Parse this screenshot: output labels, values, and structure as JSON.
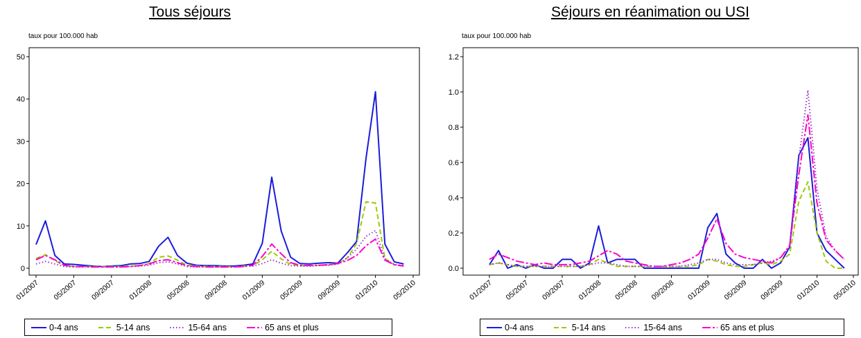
{
  "chart_data": [
    {
      "type": "line",
      "title": "Tous séjours",
      "ylabel": "taux pour 100.000 hab",
      "ylim": [
        0,
        50
      ],
      "yticks": [
        0,
        10,
        20,
        30,
        40,
        50
      ],
      "xticks": [
        "01/2007",
        "05/2007",
        "09/2007",
        "01/2008",
        "05/2008",
        "09/2008",
        "01/2009",
        "05/2009",
        "09/2009",
        "01/2010",
        "05/2010"
      ],
      "x": [
        "01/2007",
        "02/2007",
        "03/2007",
        "04/2007",
        "05/2007",
        "06/2007",
        "07/2007",
        "08/2007",
        "09/2007",
        "10/2007",
        "11/2007",
        "12/2007",
        "01/2008",
        "02/2008",
        "03/2008",
        "04/2008",
        "05/2008",
        "06/2008",
        "07/2008",
        "08/2008",
        "09/2008",
        "10/2008",
        "11/2008",
        "12/2008",
        "01/2009",
        "02/2009",
        "03/2009",
        "04/2009",
        "05/2009",
        "06/2009",
        "07/2009",
        "08/2009",
        "09/2009",
        "10/2009",
        "11/2009",
        "12/2009",
        "01/2010",
        "02/2010",
        "03/2010",
        "04/2010"
      ],
      "series": [
        {
          "name": "0-4 ans",
          "color": "#1a1adc",
          "dash": "",
          "values": [
            5.6,
            11.2,
            3.0,
            1.0,
            0.9,
            0.7,
            0.5,
            0.4,
            0.5,
            0.6,
            1.0,
            1.1,
            1.6,
            5.2,
            7.3,
            3.0,
            1.2,
            0.7,
            0.6,
            0.6,
            0.5,
            0.5,
            0.7,
            1.0,
            5.9,
            21.5,
            8.8,
            2.6,
            1.1,
            1.0,
            1.2,
            1.3,
            1.2,
            3.6,
            6.3,
            26.0,
            41.7,
            5.7,
            1.5,
            1.0
          ]
        },
        {
          "name": "5-14 ans",
          "color": "#99cc00",
          "dash": "7,4",
          "values": [
            2.3,
            3.2,
            1.8,
            0.6,
            0.4,
            0.4,
            0.4,
            0.4,
            0.4,
            0.4,
            0.5,
            0.6,
            1.1,
            2.6,
            2.9,
            1.9,
            0.7,
            0.5,
            0.4,
            0.4,
            0.4,
            0.3,
            0.5,
            0.6,
            2.0,
            4.0,
            2.2,
            0.9,
            0.6,
            0.6,
            0.7,
            0.8,
            1.0,
            2.4,
            5.8,
            15.7,
            15.4,
            2.3,
            0.8,
            0.5
          ]
        },
        {
          "name": "15-64 ans",
          "color": "#9933cc",
          "dash": "1.5,3",
          "values": [
            1.0,
            1.6,
            1.0,
            0.4,
            0.3,
            0.3,
            0.3,
            0.3,
            0.3,
            0.3,
            0.4,
            0.5,
            0.7,
            1.3,
            1.5,
            1.0,
            0.4,
            0.3,
            0.3,
            0.3,
            0.3,
            0.3,
            0.4,
            0.5,
            1.1,
            2.0,
            1.2,
            0.6,
            0.5,
            0.5,
            0.6,
            0.7,
            1.0,
            2.4,
            4.5,
            7.5,
            8.9,
            2.2,
            0.9,
            0.6
          ]
        },
        {
          "name": "65 ans et plus",
          "color": "#ff00cc",
          "dash": "12,3,3,3",
          "values": [
            2.0,
            3.0,
            2.0,
            0.7,
            0.4,
            0.4,
            0.3,
            0.3,
            0.3,
            0.3,
            0.4,
            0.6,
            1.0,
            1.8,
            2.0,
            1.3,
            0.6,
            0.4,
            0.3,
            0.3,
            0.3,
            0.3,
            0.4,
            0.7,
            2.8,
            5.7,
            3.4,
            1.3,
            0.7,
            0.6,
            0.7,
            0.8,
            1.1,
            1.8,
            3.0,
            5.3,
            6.9,
            1.9,
            0.8,
            0.5
          ]
        }
      ]
    },
    {
      "type": "line",
      "title": "Séjours en réanimation ou USI",
      "ylabel": "taux pour 100.000 hab",
      "ylim": [
        0,
        1.2
      ],
      "yticks": [
        "0.0",
        "0.2",
        "0.4",
        "0.6",
        "0.8",
        "1.0",
        "1.2"
      ],
      "xticks": [
        "01/2007",
        "05/2007",
        "09/2007",
        "01/2008",
        "05/2008",
        "09/2008",
        "01/2009",
        "05/2009",
        "09/2009",
        "01/2010",
        "05/2010"
      ],
      "x": [
        "01/2007",
        "02/2007",
        "03/2007",
        "04/2007",
        "05/2007",
        "06/2007",
        "07/2007",
        "08/2007",
        "09/2007",
        "10/2007",
        "11/2007",
        "12/2007",
        "01/2008",
        "02/2008",
        "03/2008",
        "04/2008",
        "05/2008",
        "06/2008",
        "07/2008",
        "08/2008",
        "09/2008",
        "10/2008",
        "11/2008",
        "12/2008",
        "01/2009",
        "02/2009",
        "03/2009",
        "04/2009",
        "05/2009",
        "06/2009",
        "07/2009",
        "08/2009",
        "09/2009",
        "10/2009",
        "11/2009",
        "12/2009",
        "01/2010",
        "02/2010",
        "03/2010",
        "04/2010"
      ],
      "series": [
        {
          "name": "0-4 ans",
          "color": "#1a1adc",
          "dash": "",
          "values": [
            0.02,
            0.1,
            0.0,
            0.02,
            0.0,
            0.02,
            0.0,
            0.0,
            0.05,
            0.05,
            0.0,
            0.03,
            0.24,
            0.03,
            0.05,
            0.05,
            0.05,
            0.0,
            0.0,
            0.0,
            0.0,
            0.0,
            0.0,
            0.0,
            0.23,
            0.31,
            0.08,
            0.03,
            0.0,
            0.0,
            0.05,
            0.0,
            0.03,
            0.12,
            0.64,
            0.74,
            0.2,
            0.1,
            0.05,
            0.0
          ]
        },
        {
          "name": "5-14 ans",
          "color": "#99cc00",
          "dash": "7,4",
          "values": [
            0.02,
            0.03,
            0.02,
            0.01,
            0.01,
            0.01,
            0.01,
            0.01,
            0.01,
            0.01,
            0.01,
            0.02,
            0.05,
            0.03,
            0.01,
            0.01,
            0.01,
            0.01,
            0.01,
            0.01,
            0.01,
            0.01,
            0.01,
            0.02,
            0.05,
            0.04,
            0.02,
            0.01,
            0.01,
            0.02,
            0.03,
            0.02,
            0.04,
            0.08,
            0.38,
            0.49,
            0.2,
            0.04,
            0.0,
            0.0
          ]
        },
        {
          "name": "15-64 ans",
          "color": "#9933cc",
          "dash": "1.5,3",
          "values": [
            0.02,
            0.03,
            0.02,
            0.01,
            0.01,
            0.01,
            0.01,
            0.01,
            0.01,
            0.01,
            0.01,
            0.02,
            0.03,
            0.03,
            0.02,
            0.01,
            0.01,
            0.01,
            0.01,
            0.01,
            0.01,
            0.01,
            0.02,
            0.03,
            0.05,
            0.05,
            0.03,
            0.02,
            0.02,
            0.02,
            0.03,
            0.04,
            0.06,
            0.12,
            0.62,
            1.01,
            0.45,
            0.18,
            0.1,
            0.05
          ]
        },
        {
          "name": "65 ans et plus",
          "color": "#ff00cc",
          "dash": "12,3,3,3",
          "values": [
            0.05,
            0.08,
            0.06,
            0.04,
            0.03,
            0.02,
            0.03,
            0.02,
            0.02,
            0.02,
            0.03,
            0.04,
            0.07,
            0.1,
            0.08,
            0.04,
            0.03,
            0.02,
            0.01,
            0.01,
            0.02,
            0.03,
            0.05,
            0.08,
            0.17,
            0.28,
            0.14,
            0.08,
            0.06,
            0.05,
            0.04,
            0.03,
            0.06,
            0.13,
            0.53,
            0.87,
            0.37,
            0.16,
            0.1,
            0.05
          ]
        }
      ]
    }
  ]
}
